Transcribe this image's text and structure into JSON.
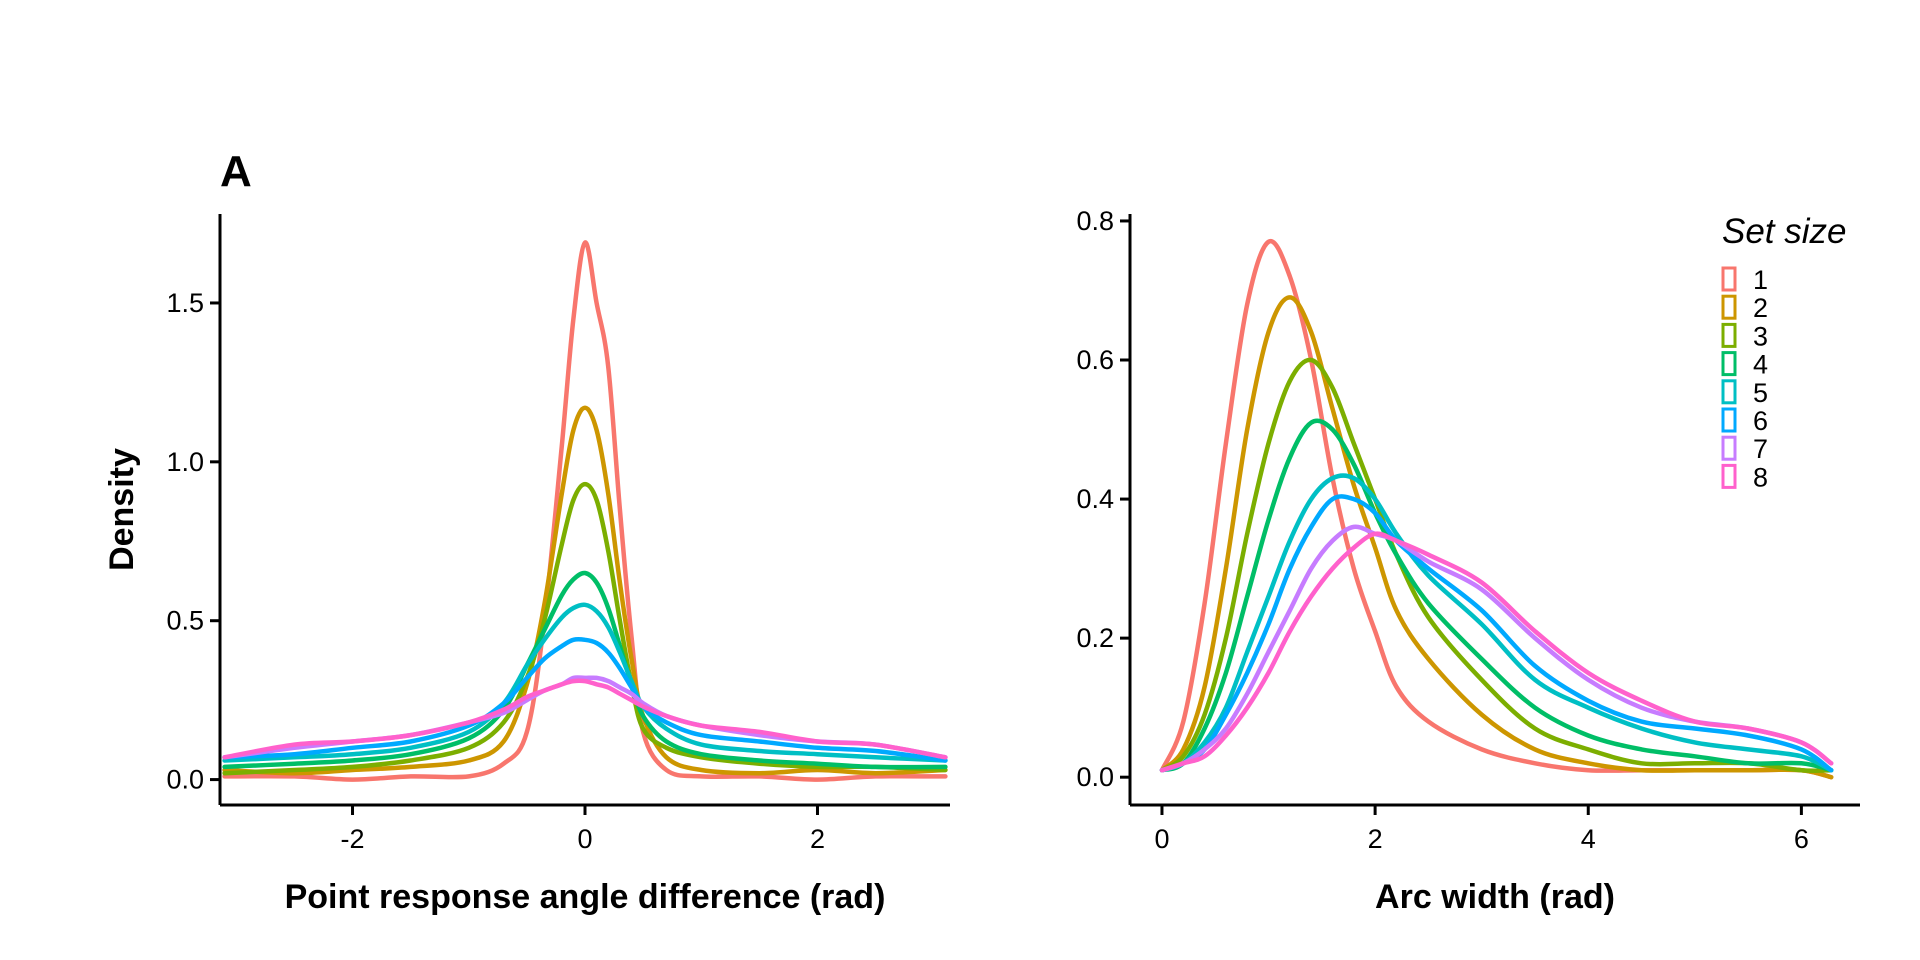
{
  "chart_data": [
    {
      "type": "line",
      "panel_label": "A",
      "xlabel": "Point response angle difference (rad)",
      "ylabel": "Density",
      "xlim": [
        -3.14,
        3.14
      ],
      "ylim": [
        -0.08,
        1.78
      ],
      "xticks": [
        -2,
        0,
        2
      ],
      "xtick_labels": [
        "-2",
        "0",
        "2"
      ],
      "yticks": [
        0,
        0.5,
        1,
        1.5
      ],
      "ytick_labels": [
        "0.0",
        "0.5",
        "1.0",
        "1.5"
      ],
      "grid": false,
      "series": [
        {
          "name": "1",
          "x": [
            -3.1,
            -2.5,
            -2.0,
            -1.5,
            -1.0,
            -0.7,
            -0.5,
            -0.35,
            -0.2,
            -0.1,
            0.0,
            0.1,
            0.2,
            0.3,
            0.4,
            0.5,
            0.7,
            1.0,
            1.5,
            2.0,
            2.5,
            3.1
          ],
          "y": [
            0.01,
            0.01,
            0.0,
            0.01,
            0.01,
            0.05,
            0.15,
            0.5,
            1.05,
            1.45,
            1.69,
            1.5,
            1.3,
            0.85,
            0.45,
            0.15,
            0.03,
            0.01,
            0.01,
            0.0,
            0.01,
            0.01
          ]
        },
        {
          "name": "2",
          "x": [
            -3.1,
            -2.5,
            -2.0,
            -1.5,
            -1.0,
            -0.7,
            -0.5,
            -0.35,
            -0.2,
            -0.1,
            0.0,
            0.1,
            0.2,
            0.3,
            0.4,
            0.5,
            0.7,
            1.0,
            1.5,
            2.0,
            2.5,
            3.1
          ],
          "y": [
            0.03,
            0.02,
            0.03,
            0.04,
            0.06,
            0.12,
            0.3,
            0.55,
            0.9,
            1.1,
            1.17,
            1.1,
            0.9,
            0.62,
            0.38,
            0.2,
            0.07,
            0.03,
            0.02,
            0.03,
            0.02,
            0.03
          ]
        },
        {
          "name": "3",
          "x": [
            -3.1,
            -2.5,
            -2.0,
            -1.5,
            -1.0,
            -0.7,
            -0.5,
            -0.35,
            -0.2,
            -0.1,
            0.0,
            0.1,
            0.2,
            0.3,
            0.4,
            0.5,
            0.7,
            1.0,
            1.5,
            2.0,
            2.5,
            3.1
          ],
          "y": [
            0.02,
            0.03,
            0.04,
            0.06,
            0.1,
            0.18,
            0.32,
            0.5,
            0.74,
            0.88,
            0.93,
            0.88,
            0.72,
            0.5,
            0.3,
            0.16,
            0.1,
            0.07,
            0.05,
            0.04,
            0.04,
            0.03
          ]
        },
        {
          "name": "4",
          "x": [
            -3.1,
            -2.5,
            -2.0,
            -1.5,
            -1.0,
            -0.7,
            -0.5,
            -0.35,
            -0.2,
            -0.1,
            0.0,
            0.1,
            0.2,
            0.3,
            0.4,
            0.5,
            0.7,
            1.0,
            1.5,
            2.0,
            2.5,
            3.1
          ],
          "y": [
            0.04,
            0.05,
            0.06,
            0.08,
            0.13,
            0.22,
            0.36,
            0.47,
            0.58,
            0.63,
            0.65,
            0.62,
            0.54,
            0.42,
            0.3,
            0.2,
            0.12,
            0.08,
            0.06,
            0.05,
            0.04,
            0.04
          ]
        },
        {
          "name": "5",
          "x": [
            -3.1,
            -2.5,
            -2.0,
            -1.5,
            -1.0,
            -0.7,
            -0.5,
            -0.35,
            -0.2,
            -0.1,
            0.0,
            0.1,
            0.2,
            0.3,
            0.4,
            0.5,
            0.7,
            1.0,
            1.5,
            2.0,
            2.5,
            3.1
          ],
          "y": [
            0.06,
            0.07,
            0.08,
            0.1,
            0.15,
            0.24,
            0.36,
            0.44,
            0.51,
            0.54,
            0.55,
            0.53,
            0.48,
            0.4,
            0.31,
            0.23,
            0.16,
            0.11,
            0.09,
            0.08,
            0.07,
            0.06
          ]
        },
        {
          "name": "6",
          "x": [
            -3.1,
            -2.5,
            -2.0,
            -1.5,
            -1.0,
            -0.7,
            -0.5,
            -0.35,
            -0.2,
            -0.1,
            0.0,
            0.1,
            0.2,
            0.3,
            0.4,
            0.5,
            0.7,
            1.0,
            1.5,
            2.0,
            2.5,
            3.1
          ],
          "y": [
            0.07,
            0.08,
            0.1,
            0.12,
            0.17,
            0.24,
            0.32,
            0.38,
            0.42,
            0.44,
            0.44,
            0.43,
            0.4,
            0.35,
            0.29,
            0.23,
            0.18,
            0.14,
            0.12,
            0.1,
            0.09,
            0.06
          ]
        },
        {
          "name": "7",
          "x": [
            -3.1,
            -2.5,
            -2.0,
            -1.5,
            -1.0,
            -0.7,
            -0.5,
            -0.35,
            -0.2,
            -0.1,
            0.0,
            0.1,
            0.2,
            0.3,
            0.4,
            0.5,
            0.7,
            1.0,
            1.5,
            2.0,
            2.5,
            3.1
          ],
          "y": [
            0.07,
            0.1,
            0.12,
            0.14,
            0.18,
            0.21,
            0.25,
            0.28,
            0.3,
            0.32,
            0.32,
            0.32,
            0.31,
            0.29,
            0.27,
            0.24,
            0.2,
            0.17,
            0.14,
            0.12,
            0.11,
            0.07
          ]
        },
        {
          "name": "8",
          "x": [
            -3.1,
            -2.5,
            -2.0,
            -1.5,
            -1.0,
            -0.7,
            -0.5,
            -0.35,
            -0.2,
            -0.1,
            0.0,
            0.1,
            0.2,
            0.3,
            0.4,
            0.5,
            0.7,
            1.0,
            1.5,
            2.0,
            2.5,
            3.1
          ],
          "y": [
            0.07,
            0.11,
            0.12,
            0.14,
            0.18,
            0.22,
            0.26,
            0.28,
            0.3,
            0.31,
            0.31,
            0.3,
            0.29,
            0.27,
            0.25,
            0.23,
            0.2,
            0.17,
            0.15,
            0.12,
            0.11,
            0.07
          ]
        }
      ]
    },
    {
      "type": "line",
      "panel_label": "",
      "xlabel": "Arc width (rad)",
      "ylabel": "",
      "xlim": [
        -0.3,
        6.55
      ],
      "ylim": [
        -0.04,
        0.81
      ],
      "xticks": [
        0,
        2,
        4,
        6
      ],
      "xtick_labels": [
        "0",
        "2",
        "4",
        "6"
      ],
      "yticks": [
        0,
        0.2,
        0.4,
        0.6,
        0.8
      ],
      "ytick_labels": [
        "0.0",
        "0.2",
        "0.4",
        "0.6",
        "0.8"
      ],
      "grid": false,
      "legend": {
        "title": "Set size",
        "position": "top-right"
      },
      "series": [
        {
          "name": "1",
          "x": [
            0.0,
            0.2,
            0.4,
            0.6,
            0.8,
            1.0,
            1.2,
            1.4,
            1.6,
            1.8,
            2.0,
            2.2,
            2.5,
            3.0,
            3.5,
            4.0,
            4.5,
            5.0,
            5.5,
            6.0,
            6.28
          ],
          "y": [
            0.01,
            0.08,
            0.25,
            0.48,
            0.68,
            0.77,
            0.72,
            0.6,
            0.43,
            0.3,
            0.21,
            0.13,
            0.08,
            0.04,
            0.02,
            0.01,
            0.01,
            0.01,
            0.01,
            0.01,
            0.0
          ]
        },
        {
          "name": "2",
          "x": [
            0.0,
            0.2,
            0.4,
            0.6,
            0.8,
            1.0,
            1.2,
            1.4,
            1.6,
            1.8,
            2.0,
            2.2,
            2.5,
            3.0,
            3.5,
            4.0,
            4.5,
            5.0,
            5.5,
            6.0,
            6.28
          ],
          "y": [
            0.01,
            0.04,
            0.13,
            0.3,
            0.5,
            0.64,
            0.69,
            0.64,
            0.53,
            0.42,
            0.33,
            0.24,
            0.17,
            0.09,
            0.04,
            0.02,
            0.01,
            0.01,
            0.01,
            0.01,
            0.0
          ]
        },
        {
          "name": "3",
          "x": [
            0.0,
            0.2,
            0.4,
            0.6,
            0.8,
            1.0,
            1.2,
            1.4,
            1.6,
            1.8,
            2.0,
            2.2,
            2.5,
            3.0,
            3.5,
            4.0,
            4.5,
            5.0,
            5.5,
            6.0,
            6.28
          ],
          "y": [
            0.01,
            0.03,
            0.09,
            0.2,
            0.35,
            0.48,
            0.57,
            0.6,
            0.56,
            0.48,
            0.4,
            0.32,
            0.23,
            0.14,
            0.07,
            0.04,
            0.02,
            0.02,
            0.02,
            0.01,
            0.01
          ]
        },
        {
          "name": "4",
          "x": [
            0.0,
            0.2,
            0.4,
            0.6,
            0.8,
            1.0,
            1.2,
            1.4,
            1.6,
            1.8,
            2.0,
            2.2,
            2.5,
            3.0,
            3.5,
            4.0,
            4.5,
            5.0,
            5.5,
            6.0,
            6.28
          ],
          "y": [
            0.01,
            0.02,
            0.07,
            0.15,
            0.26,
            0.37,
            0.46,
            0.51,
            0.5,
            0.45,
            0.38,
            0.32,
            0.25,
            0.17,
            0.1,
            0.06,
            0.04,
            0.03,
            0.02,
            0.02,
            0.01
          ]
        },
        {
          "name": "5",
          "x": [
            0.0,
            0.2,
            0.4,
            0.6,
            0.8,
            1.0,
            1.2,
            1.4,
            1.6,
            1.8,
            2.0,
            2.2,
            2.5,
            3.0,
            3.5,
            4.0,
            4.5,
            5.0,
            5.5,
            6.0,
            6.28
          ],
          "y": [
            0.01,
            0.02,
            0.05,
            0.1,
            0.18,
            0.26,
            0.34,
            0.4,
            0.43,
            0.43,
            0.4,
            0.35,
            0.29,
            0.22,
            0.14,
            0.1,
            0.07,
            0.05,
            0.04,
            0.03,
            0.01
          ]
        },
        {
          "name": "6",
          "x": [
            0.0,
            0.2,
            0.4,
            0.6,
            0.8,
            1.0,
            1.2,
            1.4,
            1.6,
            1.8,
            2.0,
            2.2,
            2.5,
            3.0,
            3.5,
            4.0,
            4.5,
            5.0,
            5.5,
            6.0,
            6.28
          ],
          "y": [
            0.01,
            0.02,
            0.04,
            0.09,
            0.15,
            0.22,
            0.3,
            0.36,
            0.4,
            0.4,
            0.38,
            0.34,
            0.3,
            0.24,
            0.16,
            0.11,
            0.08,
            0.07,
            0.06,
            0.04,
            0.01
          ]
        },
        {
          "name": "7",
          "x": [
            0.0,
            0.2,
            0.4,
            0.6,
            0.8,
            1.0,
            1.2,
            1.4,
            1.6,
            1.8,
            2.0,
            2.2,
            2.5,
            3.0,
            3.5,
            4.0,
            4.5,
            5.0,
            5.5,
            6.0,
            6.28
          ],
          "y": [
            0.01,
            0.02,
            0.04,
            0.07,
            0.12,
            0.18,
            0.24,
            0.3,
            0.34,
            0.36,
            0.35,
            0.34,
            0.31,
            0.27,
            0.2,
            0.14,
            0.1,
            0.08,
            0.07,
            0.05,
            0.02
          ]
        },
        {
          "name": "8",
          "x": [
            0.0,
            0.2,
            0.4,
            0.6,
            0.8,
            1.0,
            1.2,
            1.4,
            1.6,
            1.8,
            2.0,
            2.2,
            2.5,
            3.0,
            3.5,
            4.0,
            4.5,
            5.0,
            5.5,
            6.0,
            6.28
          ],
          "y": [
            0.01,
            0.02,
            0.03,
            0.06,
            0.1,
            0.15,
            0.21,
            0.26,
            0.3,
            0.33,
            0.35,
            0.34,
            0.32,
            0.28,
            0.21,
            0.15,
            0.11,
            0.08,
            0.07,
            0.05,
            0.02
          ]
        }
      ]
    }
  ],
  "colors": {
    "1": "#F8766D",
    "2": "#CD9600",
    "3": "#7CAE00",
    "4": "#00BE67",
    "5": "#00BFC4",
    "6": "#00A9FF",
    "7": "#C77CFF",
    "8": "#FF61CC"
  }
}
